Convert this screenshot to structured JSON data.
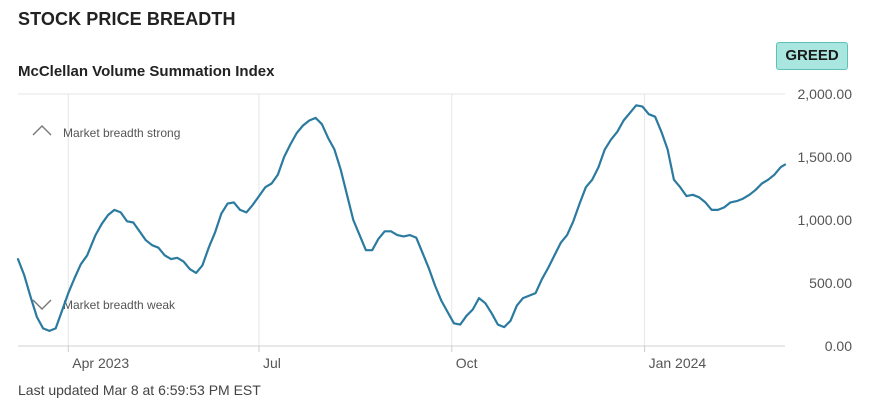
{
  "header": {
    "title": "STOCK PRICE BREADTH"
  },
  "badge": {
    "label": "GREED",
    "color": "#a8e6df"
  },
  "footer": {
    "updated": "Last updated Mar 8 at 6:59:53 PM EST"
  },
  "chart_data": {
    "type": "line",
    "title": "McClellan Volume Summation Index",
    "xlabel": "",
    "ylabel": "",
    "x_range": [
      "2023-03-08",
      "2024-03-08"
    ],
    "ylim": [
      0,
      2000
    ],
    "y_ticks": [
      {
        "value": 0,
        "label": "0.00"
      },
      {
        "value": 500,
        "label": "500.00"
      },
      {
        "value": 1000,
        "label": "1,000.00"
      },
      {
        "value": 1500,
        "label": "1,500.00"
      },
      {
        "value": 2000,
        "label": "2,000.00"
      }
    ],
    "x_ticks": [
      {
        "date": "2023-04-01",
        "label": "Apr 2023"
      },
      {
        "date": "2023-07-01",
        "label": "Jul"
      },
      {
        "date": "2023-10-01",
        "label": "Oct"
      },
      {
        "date": "2024-01-01",
        "label": "Jan 2024"
      }
    ],
    "grid": {
      "vertical": true,
      "horizontal": false
    },
    "line_color": "#2b7a9f",
    "annotations": [
      {
        "text": "Market breadth strong",
        "icon": "chevron-up-icon"
      },
      {
        "text": "Market breadth weak",
        "icon": "chevron-down-icon"
      }
    ],
    "series": [
      {
        "points": [
          [
            "2023-03-08",
            690
          ],
          [
            "2023-03-11",
            560
          ],
          [
            "2023-03-14",
            390
          ],
          [
            "2023-03-17",
            230
          ],
          [
            "2023-03-20",
            140
          ],
          [
            "2023-03-23",
            120
          ],
          [
            "2023-03-26",
            140
          ],
          [
            "2023-03-29",
            280
          ],
          [
            "2023-04-01",
            420
          ],
          [
            "2023-04-04",
            540
          ],
          [
            "2023-04-07",
            650
          ],
          [
            "2023-04-10",
            720
          ],
          [
            "2023-04-14",
            880
          ],
          [
            "2023-04-17",
            970
          ],
          [
            "2023-04-20",
            1040
          ],
          [
            "2023-04-23",
            1080
          ],
          [
            "2023-04-26",
            1060
          ],
          [
            "2023-04-29",
            990
          ],
          [
            "2023-05-02",
            980
          ],
          [
            "2023-05-05",
            910
          ],
          [
            "2023-05-08",
            840
          ],
          [
            "2023-05-11",
            800
          ],
          [
            "2023-05-14",
            780
          ],
          [
            "2023-05-17",
            720
          ],
          [
            "2023-05-20",
            690
          ],
          [
            "2023-05-23",
            700
          ],
          [
            "2023-05-26",
            670
          ],
          [
            "2023-05-29",
            610
          ],
          [
            "2023-06-01",
            580
          ],
          [
            "2023-06-04",
            640
          ],
          [
            "2023-06-07",
            780
          ],
          [
            "2023-06-10",
            900
          ],
          [
            "2023-06-13",
            1050
          ],
          [
            "2023-06-16",
            1130
          ],
          [
            "2023-06-19",
            1140
          ],
          [
            "2023-06-22",
            1080
          ],
          [
            "2023-06-25",
            1060
          ],
          [
            "2023-06-28",
            1120
          ],
          [
            "2023-07-01",
            1190
          ],
          [
            "2023-07-04",
            1260
          ],
          [
            "2023-07-07",
            1290
          ],
          [
            "2023-07-10",
            1360
          ],
          [
            "2023-07-13",
            1500
          ],
          [
            "2023-07-16",
            1600
          ],
          [
            "2023-07-19",
            1690
          ],
          [
            "2023-07-22",
            1750
          ],
          [
            "2023-07-25",
            1790
          ],
          [
            "2023-07-28",
            1810
          ],
          [
            "2023-07-31",
            1760
          ],
          [
            "2023-08-03",
            1650
          ],
          [
            "2023-08-06",
            1560
          ],
          [
            "2023-08-09",
            1400
          ],
          [
            "2023-08-12",
            1200
          ],
          [
            "2023-08-15",
            1000
          ],
          [
            "2023-08-18",
            880
          ],
          [
            "2023-08-21",
            760
          ],
          [
            "2023-08-24",
            760
          ],
          [
            "2023-08-27",
            850
          ],
          [
            "2023-08-30",
            910
          ],
          [
            "2023-09-02",
            910
          ],
          [
            "2023-09-05",
            880
          ],
          [
            "2023-09-08",
            870
          ],
          [
            "2023-09-11",
            880
          ],
          [
            "2023-09-14",
            860
          ],
          [
            "2023-09-17",
            740
          ],
          [
            "2023-09-20",
            620
          ],
          [
            "2023-09-23",
            480
          ],
          [
            "2023-09-26",
            360
          ],
          [
            "2023-09-29",
            270
          ],
          [
            "2023-10-02",
            180
          ],
          [
            "2023-10-05",
            170
          ],
          [
            "2023-10-08",
            240
          ],
          [
            "2023-10-11",
            290
          ],
          [
            "2023-10-14",
            380
          ],
          [
            "2023-10-17",
            340
          ],
          [
            "2023-10-20",
            260
          ],
          [
            "2023-10-23",
            170
          ],
          [
            "2023-10-26",
            150
          ],
          [
            "2023-10-29",
            200
          ],
          [
            "2023-11-01",
            320
          ],
          [
            "2023-11-04",
            380
          ],
          [
            "2023-11-07",
            400
          ],
          [
            "2023-11-10",
            420
          ],
          [
            "2023-11-13",
            530
          ],
          [
            "2023-11-16",
            620
          ],
          [
            "2023-11-19",
            720
          ],
          [
            "2023-11-22",
            820
          ],
          [
            "2023-11-25",
            880
          ],
          [
            "2023-11-28",
            990
          ],
          [
            "2023-12-01",
            1130
          ],
          [
            "2023-12-04",
            1260
          ],
          [
            "2023-12-07",
            1320
          ],
          [
            "2023-12-10",
            1420
          ],
          [
            "2023-12-13",
            1560
          ],
          [
            "2023-12-16",
            1640
          ],
          [
            "2023-12-19",
            1700
          ],
          [
            "2023-12-22",
            1790
          ],
          [
            "2023-12-25",
            1850
          ],
          [
            "2023-12-28",
            1910
          ],
          [
            "2023-12-31",
            1900
          ],
          [
            "2024-01-03",
            1840
          ],
          [
            "2024-01-06",
            1820
          ],
          [
            "2024-01-09",
            1700
          ],
          [
            "2024-01-12",
            1560
          ],
          [
            "2024-01-15",
            1320
          ],
          [
            "2024-01-18",
            1260
          ],
          [
            "2024-01-21",
            1190
          ],
          [
            "2024-01-24",
            1200
          ],
          [
            "2024-01-27",
            1180
          ],
          [
            "2024-01-30",
            1140
          ],
          [
            "2024-02-02",
            1080
          ],
          [
            "2024-02-05",
            1080
          ],
          [
            "2024-02-08",
            1100
          ],
          [
            "2024-02-11",
            1140
          ],
          [
            "2024-02-14",
            1150
          ],
          [
            "2024-02-17",
            1170
          ],
          [
            "2024-02-20",
            1200
          ],
          [
            "2024-02-23",
            1240
          ],
          [
            "2024-02-26",
            1290
          ],
          [
            "2024-02-29",
            1320
          ],
          [
            "2024-03-03",
            1360
          ],
          [
            "2024-03-06",
            1420
          ],
          [
            "2024-03-08",
            1440
          ]
        ]
      }
    ]
  }
}
